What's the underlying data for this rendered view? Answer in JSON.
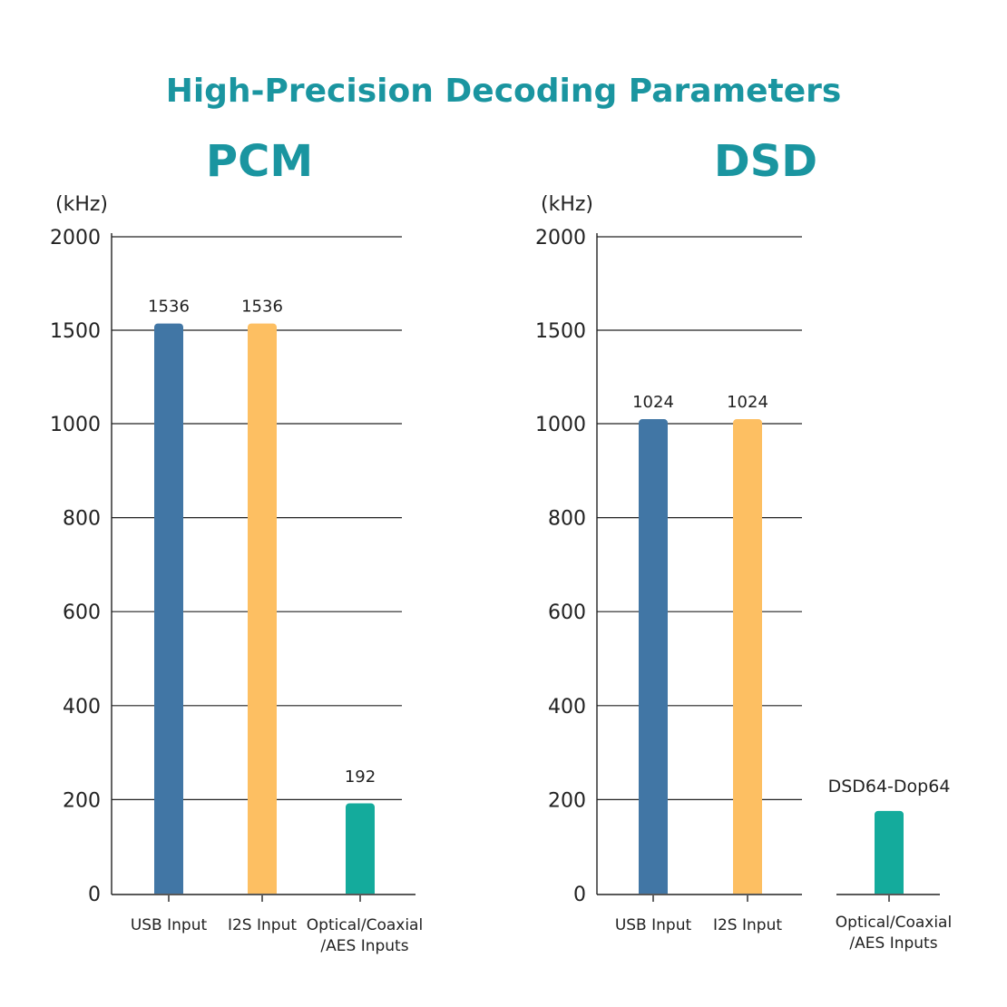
{
  "title": "High-Precision Decoding Parameters",
  "colors": {
    "title": "#1a95a0",
    "usb": "#4176a5",
    "i2s": "#fdbf62",
    "optical": "#14ab9c"
  },
  "chart_data": [
    {
      "type": "bar",
      "title": "PCM",
      "ylabel": "(kHz)",
      "xlabel": "",
      "ylim": [
        0,
        2000
      ],
      "yticks": [
        0,
        200,
        400,
        600,
        800,
        1000,
        1500,
        2000
      ],
      "ytick_labels": [
        "0",
        "200",
        "400",
        "600",
        "800",
        "1000",
        "1500",
        "2000"
      ],
      "axis_note": "non-linear y-axis: 0-1000 evenly spaced by 200, then 1500 and 2000",
      "grid": true,
      "categories": [
        "USB Input",
        "I2S Input",
        "Optical/Coaxial\n/AES Inputs"
      ],
      "category_lines": [
        [
          "USB Input"
        ],
        [
          "I2S Input"
        ],
        [
          "Optical/Coaxial",
          "/AES Inputs"
        ]
      ],
      "values": [
        1536,
        1536,
        192
      ],
      "data_labels": [
        "1536",
        "1536",
        "192"
      ]
    },
    {
      "type": "bar",
      "title": "DSD",
      "ylabel": "(kHz)",
      "xlabel": "",
      "ylim": [
        0,
        2000
      ],
      "yticks": [
        0,
        200,
        400,
        600,
        800,
        1000,
        1500,
        2000
      ],
      "ytick_labels": [
        "0",
        "200",
        "400",
        "600",
        "800",
        "1000",
        "1500",
        "2000"
      ],
      "axis_note": "non-linear y-axis: 0-1000 evenly spaced by 200, then 1500 and 2000",
      "grid": true,
      "categories": [
        "USB Input",
        "I2S Input",
        "Optical/Coaxial\n/AES Inputs"
      ],
      "category_lines": [
        [
          "USB Input"
        ],
        [
          "I2S Input"
        ],
        [
          "Optical/Coaxial",
          "/AES Inputs"
        ]
      ],
      "values": [
        1024,
        1024,
        176
      ],
      "data_labels": [
        "1024",
        "1024",
        "DSD64-Dop64"
      ]
    }
  ]
}
